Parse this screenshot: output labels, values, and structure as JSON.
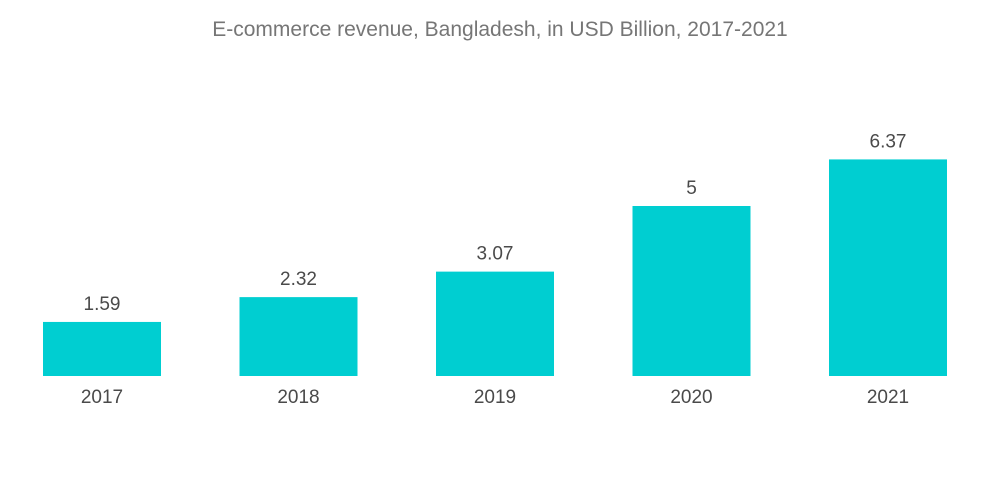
{
  "chart_data": {
    "type": "bar",
    "title": "E-commerce revenue, Bangladesh, in USD Billion, 2017-2021",
    "xlabel": "",
    "ylabel": "",
    "categories": [
      "2017",
      "2018",
      "2019",
      "2020",
      "2021"
    ],
    "values": [
      1.59,
      2.32,
      3.07,
      5,
      6.37
    ],
    "value_labels": [
      "1.59",
      "2.32",
      "3.07",
      "5",
      "6.37"
    ],
    "ylim": [
      0,
      7
    ],
    "grid": false,
    "legend": "none",
    "colors": {
      "bar": "#00CED1"
    }
  }
}
